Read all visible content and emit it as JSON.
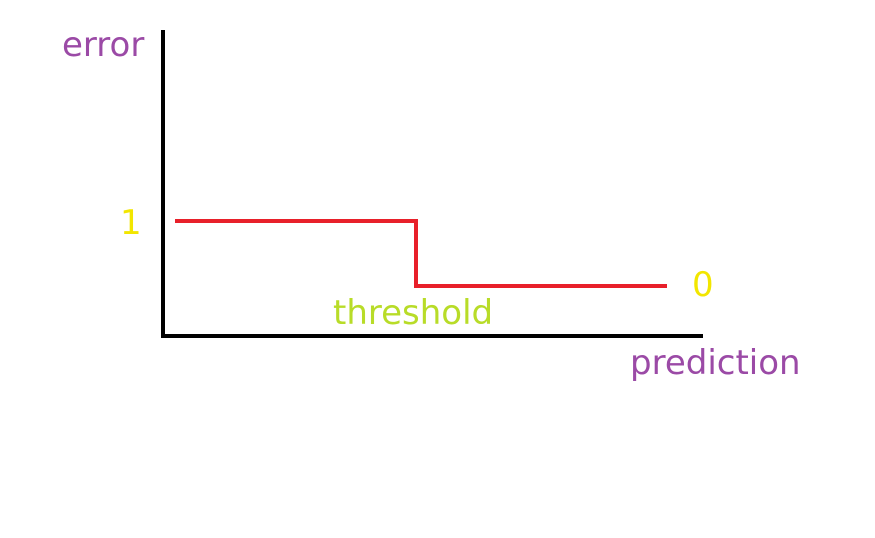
{
  "diagram": {
    "y_axis_label": "error",
    "x_axis_label": "prediction",
    "level_high_label": "1",
    "level_low_label": "0",
    "threshold_label": "threshold",
    "step_function": {
      "high_value": 1,
      "low_value": 0,
      "changes_at": "threshold"
    },
    "colors": {
      "axis": "#000000",
      "step_line": "#e8202a",
      "axis_labels": "#9b4aa6",
      "value_labels": "#f2e600",
      "threshold_label": "#b8dc28",
      "background": "#ffffff"
    }
  }
}
